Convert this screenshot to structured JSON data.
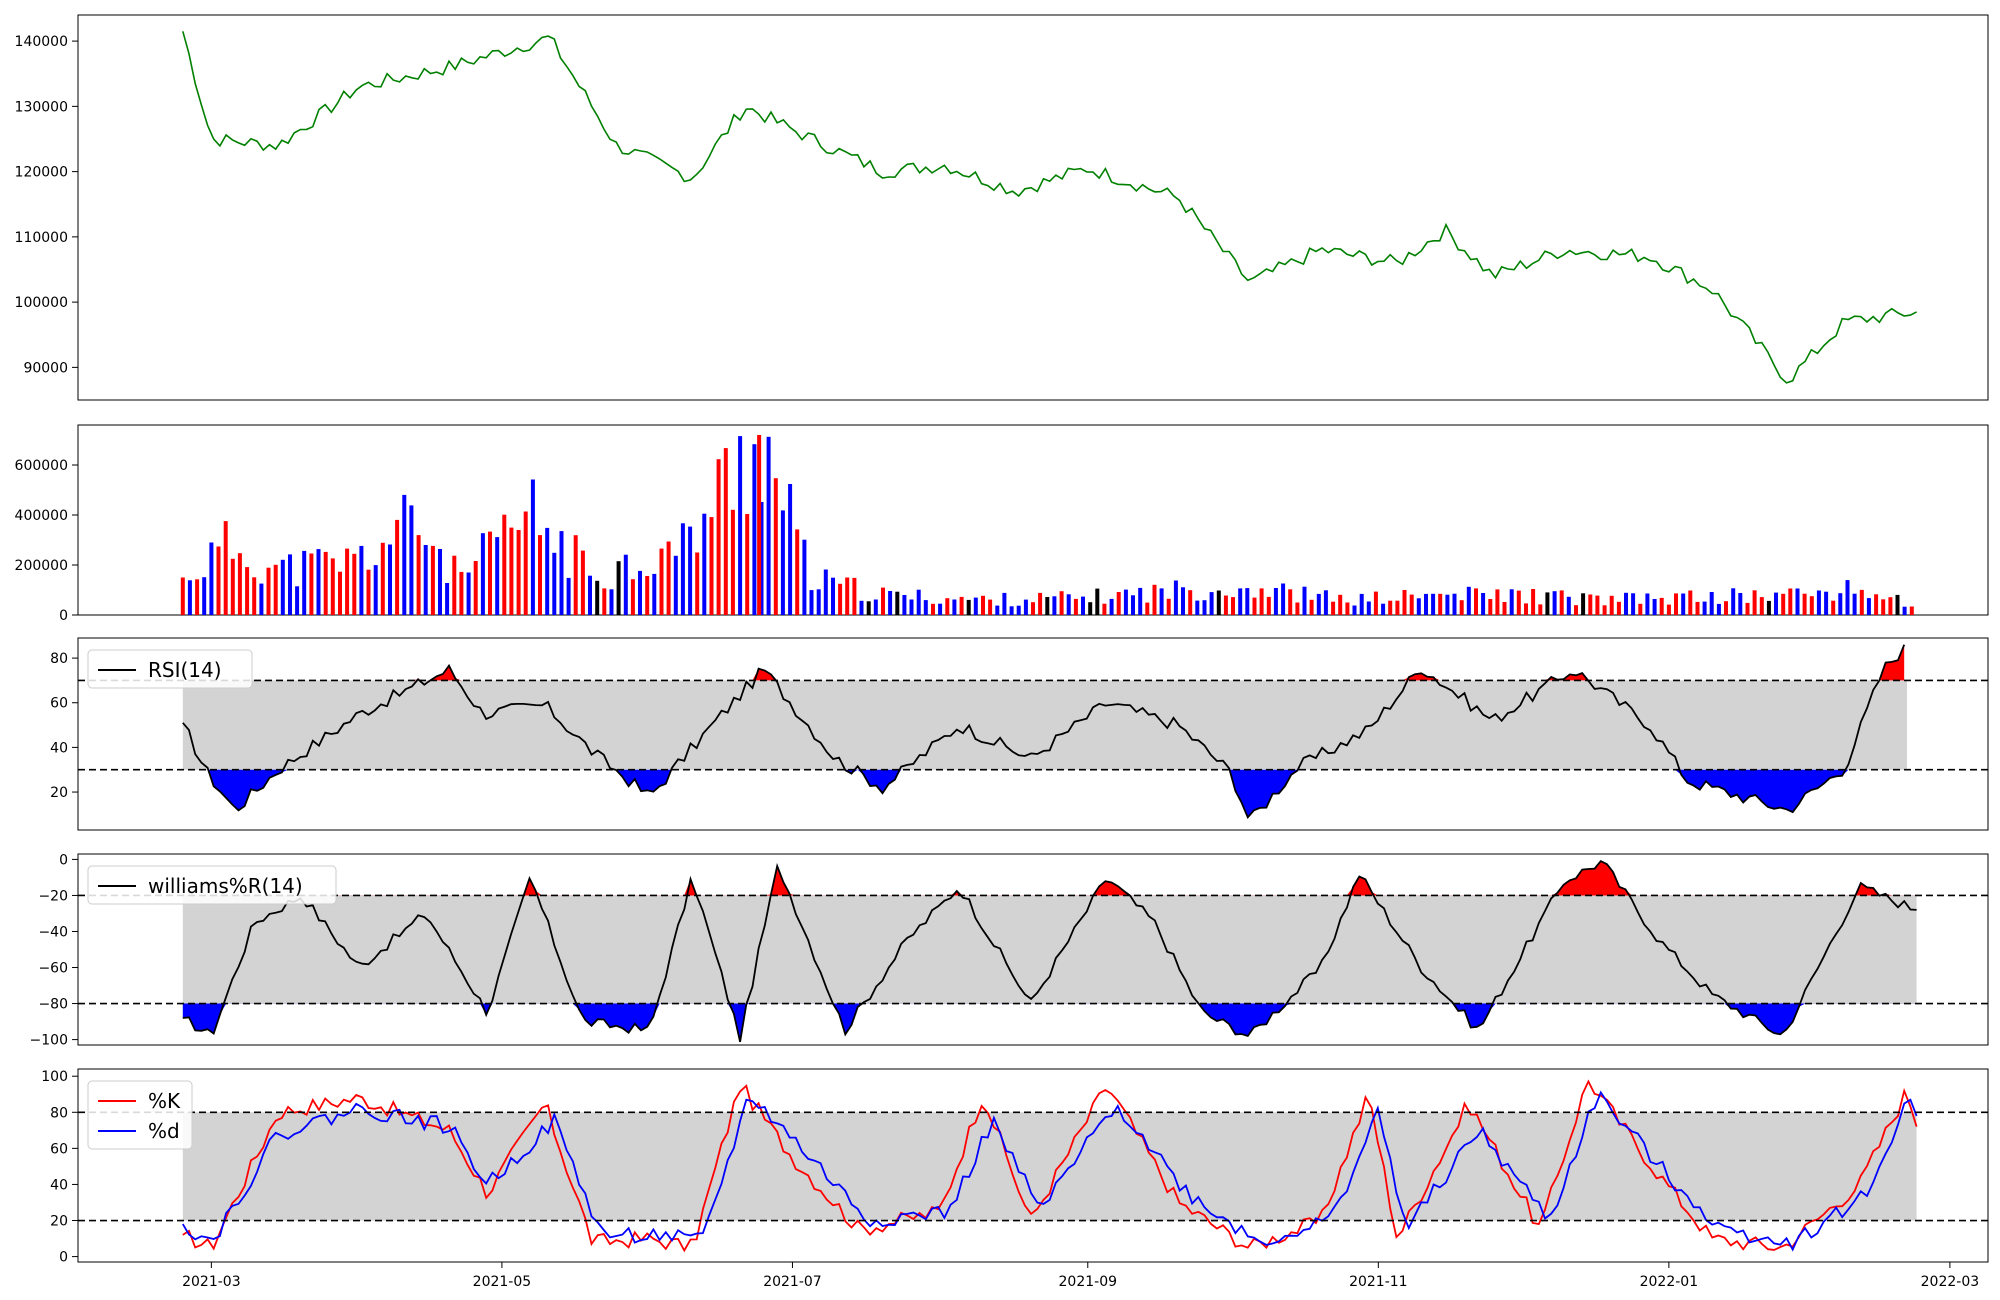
{
  "chart_data": [
    {
      "id": "price",
      "type": "line",
      "color": "#008000",
      "ylim": [
        85000,
        144000
      ],
      "yticks": [
        90000,
        100000,
        110000,
        120000,
        130000,
        140000
      ],
      "x": [
        "2021-02-23",
        "2021-03-01",
        "2021-03-15",
        "2021-04-01",
        "2021-04-20",
        "2021-05-11",
        "2021-05-25",
        "2021-06-10",
        "2021-06-21",
        "2021-07-05",
        "2021-07-20",
        "2021-08-02",
        "2021-08-17",
        "2021-09-01",
        "2021-09-20",
        "2021-10-05",
        "2021-10-20",
        "2021-11-05",
        "2021-11-15",
        "2021-11-25",
        "2021-12-10",
        "2021-12-28",
        "2022-01-10",
        "2022-01-26",
        "2022-02-07",
        "2022-02-22"
      ],
      "y": [
        141500,
        125000,
        124000,
        133000,
        136000,
        140500,
        124000,
        119000,
        130000,
        125000,
        120000,
        121000,
        117000,
        120500,
        116000,
        103000,
        108000,
        106000,
        111000,
        104000,
        108000,
        107000,
        102000,
        88000,
        97000,
        98500
      ]
    },
    {
      "id": "volume",
      "type": "bar",
      "ylim": [
        0,
        760000
      ],
      "yticks": [
        0,
        200000,
        400000,
        600000
      ],
      "colors": {
        "up": "#ff0000",
        "down": "#0000ff",
        "flat": "#000000"
      },
      "x": [
        "2021-02-23",
        "2021-03-05",
        "2021-03-15",
        "2021-04-01",
        "2021-04-13",
        "2021-04-22",
        "2021-05-07",
        "2021-05-20",
        "2021-06-08",
        "2021-06-24",
        "2021-07-05",
        "2021-07-20",
        "2021-08-10",
        "2021-09-01",
        "2021-09-20",
        "2021-10-05",
        "2021-10-25",
        "2021-11-15",
        "2021-11-30",
        "2021-12-20",
        "2022-01-05",
        "2022-01-25",
        "2022-02-10",
        "2022-02-22"
      ],
      "y": [
        150000,
        280000,
        180000,
        220000,
        380000,
        140000,
        400000,
        160000,
        270000,
        720000,
        140000,
        80000,
        60000,
        70000,
        100000,
        110000,
        60000,
        80000,
        80000,
        60000,
        70000,
        80000,
        100000,
        40000
      ]
    },
    {
      "id": "rsi",
      "type": "line",
      "ylim": [
        3,
        89
      ],
      "yticks": [
        20,
        40,
        60,
        80
      ],
      "bands": [
        30,
        70
      ],
      "legend": [
        "RSI(14)"
      ],
      "series": [
        {
          "name": "RSI(14)",
          "color": "#000000",
          "x": [
            "2021-02-23",
            "2021-02-28",
            "2021-03-06",
            "2021-03-15",
            "2021-04-01",
            "2021-04-20",
            "2021-04-27",
            "2021-05-10",
            "2021-05-20",
            "2021-06-01",
            "2021-06-15",
            "2021-06-25",
            "2021-07-10",
            "2021-07-20",
            "2021-08-05",
            "2021-08-20",
            "2021-09-05",
            "2021-09-20",
            "2021-10-01",
            "2021-10-05",
            "2021-10-15",
            "2021-10-30",
            "2021-11-10",
            "2021-11-25",
            "2021-12-12",
            "2021-12-28",
            "2022-01-05",
            "2022-01-26",
            "2022-02-07",
            "2022-02-15",
            "2022-02-20"
          ],
          "y": [
            51,
            29,
            12,
            30,
            55,
            75,
            55,
            59,
            38,
            18,
            52,
            75,
            35,
            22,
            50,
            35,
            60,
            50,
            29,
            7,
            31,
            48,
            76,
            52,
            75,
            50,
            25,
            12,
            31,
            75,
            86
          ]
        }
      ]
    },
    {
      "id": "williams",
      "type": "line",
      "ylim": [
        -103,
        3
      ],
      "yticks": [
        0,
        -20,
        -40,
        -60,
        -80,
        -100
      ],
      "bands": [
        -80,
        -20
      ],
      "legend": [
        "williams%R(14)"
      ],
      "series": [
        {
          "name": "williams%R(14)",
          "color": "#000000",
          "x": [
            "2021-02-23",
            "2021-03-01",
            "2021-03-10",
            "2021-03-20",
            "2021-04-01",
            "2021-04-15",
            "2021-04-28",
            "2021-05-07",
            "2021-05-18",
            "2021-06-01",
            "2021-06-10",
            "2021-06-20",
            "2021-06-28",
            "2021-07-12",
            "2021-07-25",
            "2021-08-05",
            "2021-08-20",
            "2021-09-05",
            "2021-09-15",
            "2021-09-25",
            "2021-10-05",
            "2021-10-20",
            "2021-10-28",
            "2021-11-10",
            "2021-11-22",
            "2021-12-10",
            "2021-12-18",
            "2021-12-30",
            "2022-01-10",
            "2022-01-25",
            "2022-02-10",
            "2022-02-22"
          ],
          "y": [
            -88,
            -98,
            -35,
            -20,
            -60,
            -30,
            -85,
            -10,
            -90,
            -95,
            -10,
            -99,
            -3,
            -95,
            -45,
            -15,
            -80,
            -10,
            -35,
            -85,
            -98,
            -60,
            -8,
            -60,
            -95,
            -12,
            -1,
            -45,
            -75,
            -98,
            -15,
            -28
          ]
        }
      ]
    },
    {
      "id": "stochastic",
      "type": "line",
      "ylim": [
        -3,
        104
      ],
      "yticks": [
        0,
        20,
        40,
        60,
        80,
        100
      ],
      "bands": [
        20,
        80
      ],
      "legend": [
        "%K",
        "%d"
      ],
      "series": [
        {
          "name": "%K",
          "color": "#ff0000",
          "x": [
            "2021-02-23",
            "2021-03-01",
            "2021-03-15",
            "2021-04-01",
            "2021-04-20",
            "2021-04-28",
            "2021-05-10",
            "2021-05-20",
            "2021-06-01",
            "2021-06-10",
            "2021-06-20",
            "2021-07-01",
            "2021-07-15",
            "2021-08-01",
            "2021-08-10",
            "2021-08-20",
            "2021-09-05",
            "2021-09-20",
            "2021-10-05",
            "2021-10-20",
            "2021-10-30",
            "2021-11-05",
            "2021-11-20",
            "2021-12-05",
            "2021-12-15",
            "2021-12-30",
            "2022-01-10",
            "2022-01-25",
            "2022-02-10",
            "2022-02-20",
            "2022-02-22"
          ],
          "y": [
            12,
            5,
            80,
            88,
            70,
            35,
            85,
            8,
            10,
            5,
            95,
            55,
            15,
            25,
            90,
            20,
            95,
            30,
            5,
            20,
            90,
            10,
            85,
            15,
            98,
            45,
            10,
            5,
            40,
            92,
            72
          ]
        },
        {
          "name": "%d",
          "color": "#0000ff",
          "x": [
            "2021-02-23",
            "2021-03-01",
            "2021-03-15",
            "2021-04-01",
            "2021-04-20",
            "2021-04-28",
            "2021-05-12",
            "2021-05-22",
            "2021-06-03",
            "2021-06-12",
            "2021-06-22",
            "2021-07-03",
            "2021-07-17",
            "2021-08-03",
            "2021-08-12",
            "2021-08-22",
            "2021-09-07",
            "2021-09-22",
            "2021-10-07",
            "2021-10-22",
            "2021-11-01",
            "2021-11-07",
            "2021-11-22",
            "2021-12-07",
            "2021-12-17",
            "2021-12-30",
            "2022-01-12",
            "2022-01-27",
            "2022-02-12",
            "2022-02-20",
            "2022-02-22"
          ],
          "y": [
            18,
            8,
            68,
            82,
            72,
            40,
            75,
            12,
            12,
            8,
            90,
            60,
            20,
            25,
            75,
            25,
            85,
            35,
            8,
            20,
            80,
            15,
            70,
            20,
            90,
            50,
            15,
            8,
            35,
            88,
            78
          ]
        }
      ]
    }
  ],
  "xaxis": {
    "ticks": [
      "2021-03",
      "2021-05",
      "2021-07",
      "2021-09",
      "2021-11",
      "2022-01",
      "2022-03"
    ]
  }
}
